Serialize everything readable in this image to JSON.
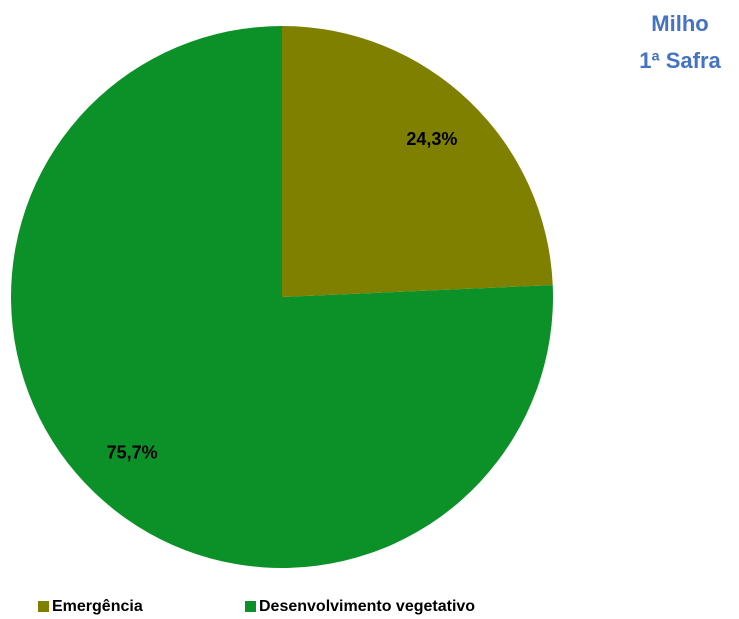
{
  "chart_data": {
    "type": "pie",
    "title": "Milho",
    "subtitle": "1ª Safra",
    "categories": [
      "Emergência",
      "Desenvolvimento vegetativo"
    ],
    "values": [
      24.3,
      75.7
    ],
    "value_labels": [
      "24,3%",
      "75,7%"
    ],
    "colors": [
      "#808000",
      "#0b9128"
    ],
    "legend": "bottom"
  }
}
